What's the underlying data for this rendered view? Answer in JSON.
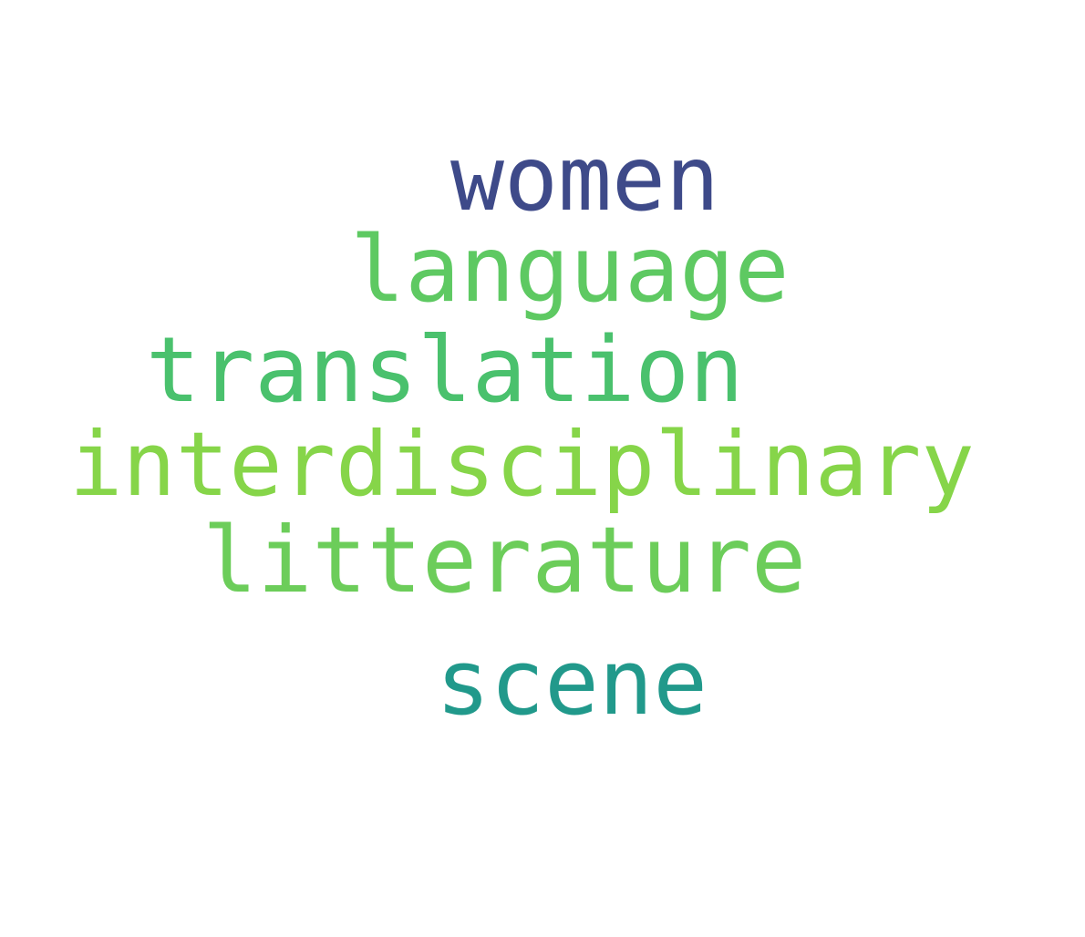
{
  "words": [
    {
      "text": "women",
      "color": "#3e4a89"
    },
    {
      "text": "language",
      "color": "#5ec962"
    },
    {
      "text": "translation",
      "color": "#4ac16d"
    },
    {
      "text": "interdisciplinary",
      "color": "#86d549"
    },
    {
      "text": "litterature",
      "color": "#6ccd5a"
    },
    {
      "text": "scene",
      "color": "#21998b"
    }
  ]
}
